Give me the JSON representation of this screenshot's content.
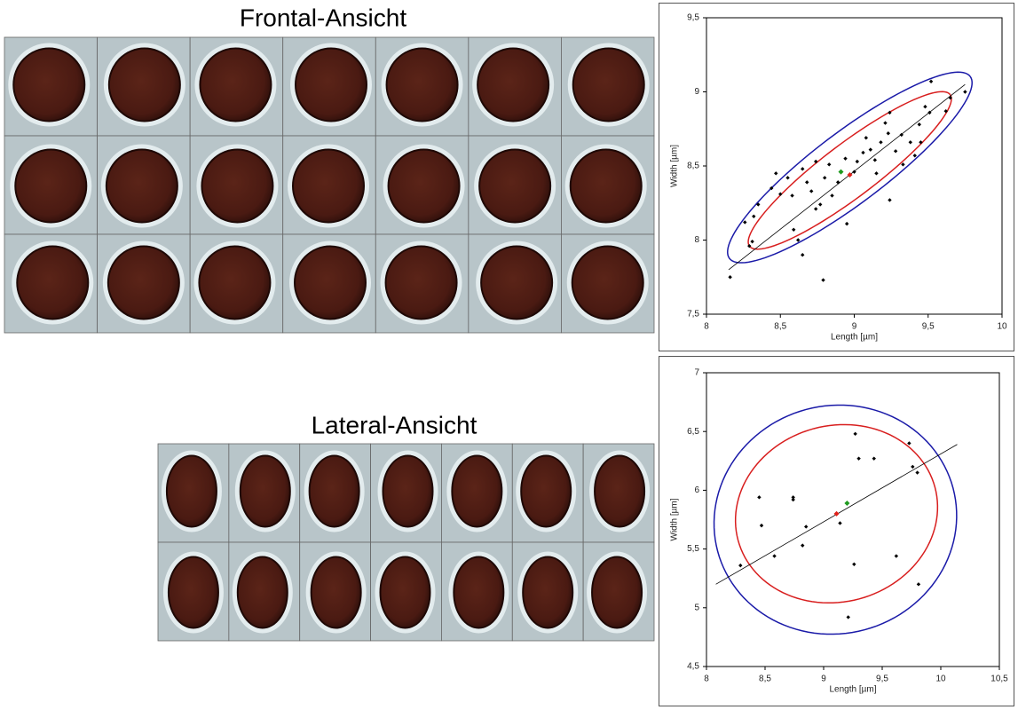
{
  "panels": [
    {
      "title": "Frontal-Ansicht"
    },
    {
      "title": "Lateral-Ansicht"
    }
  ],
  "chart_data": [
    {
      "type": "scatter",
      "x_label": "Length [µm]",
      "y_label": "Width [µm]",
      "xlim": [
        8,
        10
      ],
      "xticks": [
        8,
        {
          "value": 8.5,
          "label": "8,5"
        },
        9,
        {
          "value": 9.5,
          "label": "9,5"
        },
        10
      ],
      "ylim": [
        7.5,
        9.5
      ],
      "yticks": [
        {
          "value": 7.5,
          "label": "7,5"
        },
        8,
        {
          "value": 8.5,
          "label": "8,5"
        },
        9,
        {
          "value": 9.5,
          "label": "9,5"
        }
      ],
      "series": [
        {
          "color": "#000000",
          "x": [
            8.16,
            8.26,
            8.29,
            8.31,
            8.32,
            8.35,
            8.44,
            8.47,
            8.5,
            8.55,
            8.58,
            8.59,
            8.62,
            8.65,
            8.65,
            8.68,
            8.71,
            8.74,
            8.74,
            8.77,
            8.79,
            8.8,
            8.83,
            8.85,
            8.89,
            8.94,
            9.0,
            9.02,
            9.06,
            9.08,
            9.11,
            9.14,
            9.15,
            9.18,
            9.21,
            9.23,
            9.24,
            9.28,
            9.32,
            9.33,
            9.38,
            9.41,
            9.44,
            9.45,
            9.48,
            9.51,
            9.52,
            9.62,
            9.65,
            9.75,
            9.24,
            8.95
          ],
          "values": [
            7.75,
            8.12,
            7.96,
            7.99,
            8.16,
            8.24,
            8.35,
            8.45,
            8.31,
            8.42,
            8.3,
            8.07,
            8.0,
            7.9,
            8.48,
            8.39,
            8.33,
            8.53,
            8.21,
            8.24,
            7.73,
            8.42,
            8.51,
            8.3,
            8.39,
            8.55,
            8.46,
            8.53,
            8.59,
            8.69,
            8.61,
            8.54,
            8.45,
            8.66,
            8.79,
            8.72,
            8.86,
            8.6,
            8.71,
            8.51,
            8.66,
            8.57,
            8.78,
            8.66,
            8.9,
            8.86,
            9.07,
            8.87,
            8.96,
            9.0,
            8.27,
            8.11
          ]
        },
        {
          "color": "#e0201a",
          "x": [
            8.97
          ],
          "values": [
            8.44
          ]
        },
        {
          "color": "#1f9a1f",
          "x": [
            8.91
          ],
          "values": [
            8.46
          ]
        }
      ],
      "fit_line": {
        "color": "#000000",
        "x": [
          8.15,
          9.75
        ],
        "values": [
          7.8,
          9.05
        ]
      },
      "ellipses": [
        {
          "color": "#1a1aa8",
          "center": [
            8.97,
            8.49
          ],
          "semi_axes": [
            1.02,
            0.24
          ],
          "angle": 37
        },
        {
          "color": "#d81e1e",
          "center": [
            8.97,
            8.47
          ],
          "semi_axes": [
            0.85,
            0.18
          ],
          "angle": 37
        }
      ]
    },
    {
      "type": "scatter",
      "x_label": "Length [µm]",
      "y_label": "Width [µm]",
      "xlim": [
        8,
        10.5
      ],
      "xticks": [
        8,
        {
          "value": 8.5,
          "label": "8,5"
        },
        9,
        {
          "value": 9.5,
          "label": "9,5"
        },
        10,
        {
          "value": 10.5,
          "label": "10,5"
        }
      ],
      "ylim": [
        4.5,
        7
      ],
      "yticks": [
        {
          "value": 4.5,
          "label": "4,5"
        },
        5,
        {
          "value": 5.5,
          "label": "5,5"
        },
        6,
        {
          "value": 6.5,
          "label": "6,5"
        },
        7
      ],
      "series": [
        {
          "color": "#000000",
          "x": [
            8.29,
            8.45,
            8.47,
            8.58,
            8.74,
            8.74,
            8.82,
            8.85,
            9.14,
            9.21,
            9.26,
            9.27,
            9.3,
            9.43,
            9.62,
            9.73,
            9.76,
            9.8,
            9.81
          ],
          "values": [
            5.36,
            5.94,
            5.7,
            5.44,
            5.94,
            5.92,
            5.53,
            5.69,
            5.72,
            4.92,
            5.37,
            6.48,
            6.27,
            6.27,
            5.44,
            6.4,
            6.2,
            6.15,
            5.2
          ]
        },
        {
          "color": "#e0201a",
          "x": [
            9.11
          ],
          "values": [
            5.8
          ]
        },
        {
          "color": "#1f9a1f",
          "x": [
            9.2
          ],
          "values": [
            5.89
          ]
        }
      ],
      "fit_line": {
        "color": "#000000",
        "x": [
          8.08,
          10.14
        ],
        "values": [
          5.2,
          6.39
        ]
      },
      "ellipses": [
        {
          "color": "#1a1aa8",
          "center": [
            9.1,
            5.75
          ],
          "semi_axes": [
            1.04,
            0.97
          ],
          "angle": 15
        },
        {
          "color": "#d81e1e",
          "center": [
            9.11,
            5.8
          ],
          "semi_axes": [
            0.87,
            0.75
          ],
          "angle": 15
        }
      ]
    }
  ]
}
